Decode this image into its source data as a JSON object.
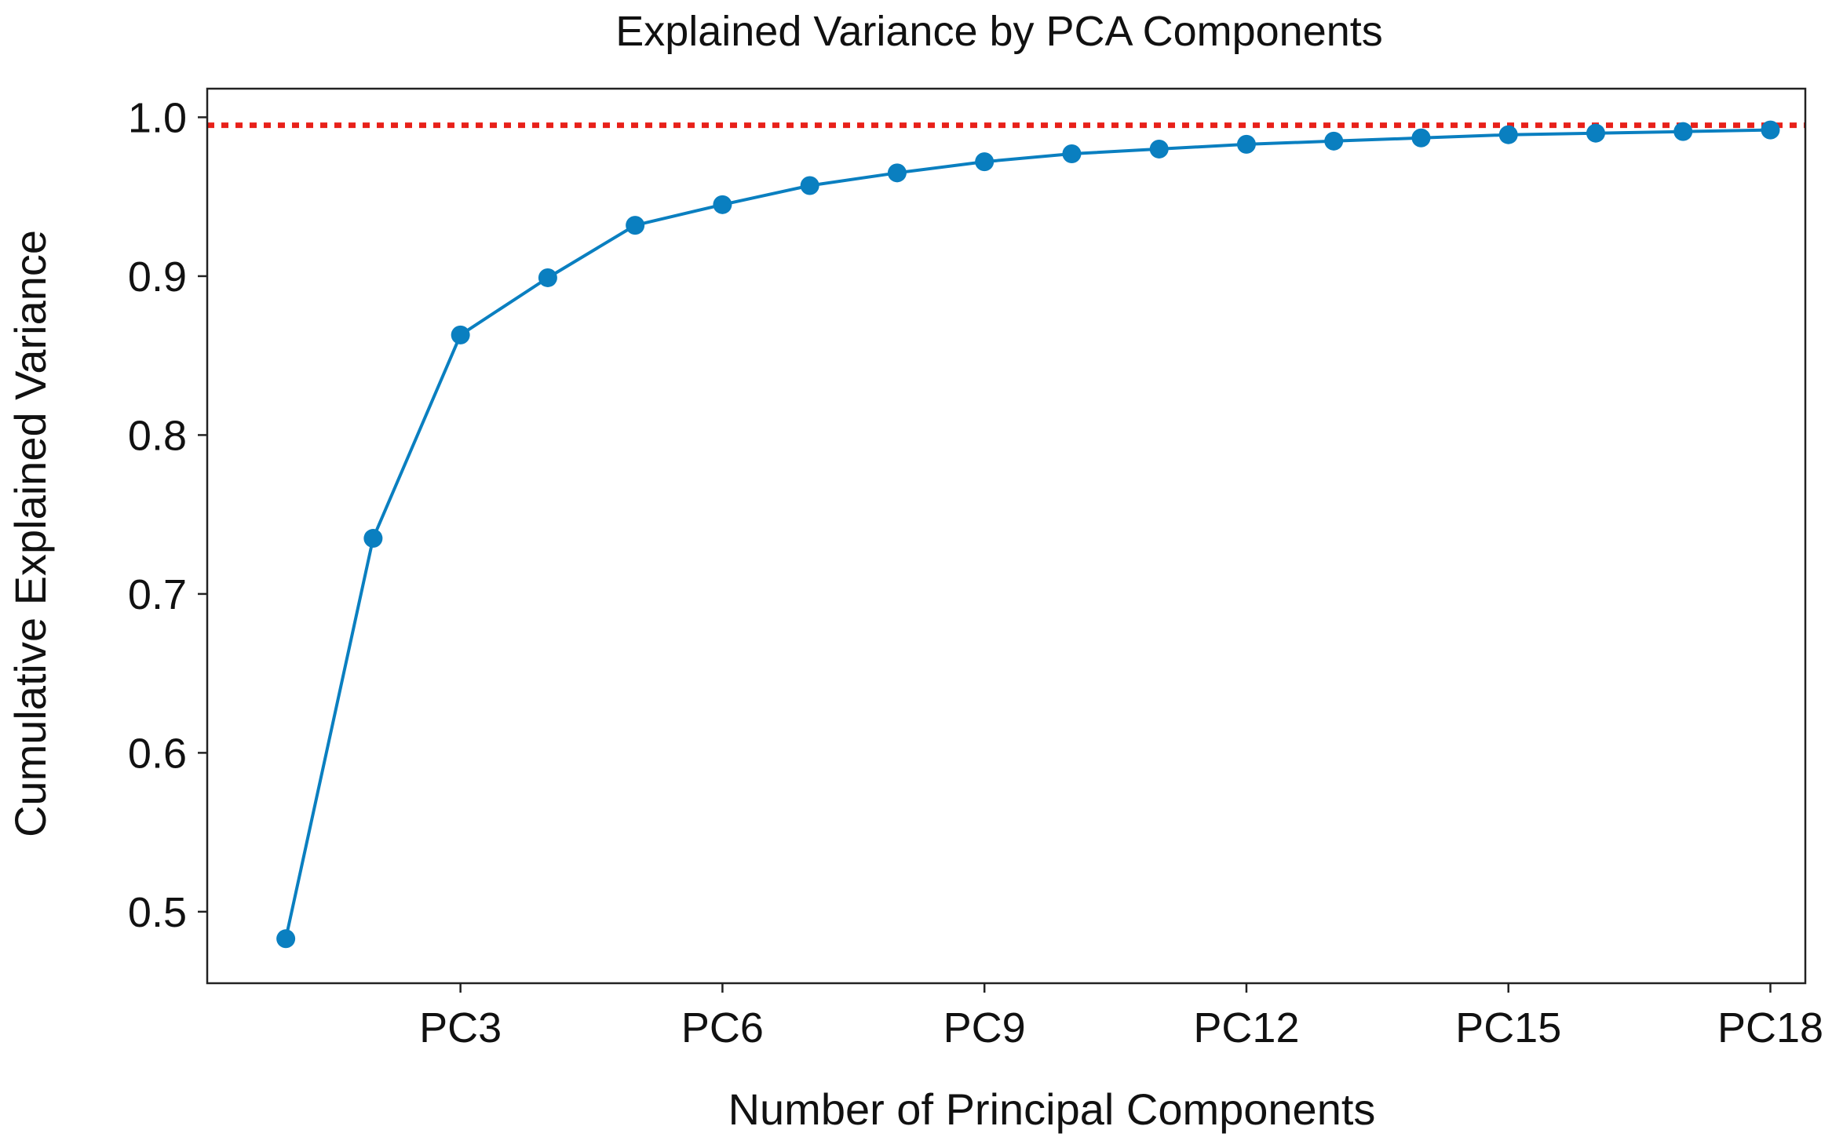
{
  "chart_data": {
    "type": "line",
    "title": "Explained Variance by PCA Components",
    "xlabel": "Number of Principal Components",
    "ylabel": "Cumulative Explained Variance",
    "x": [
      1,
      2,
      3,
      4,
      5,
      6,
      7,
      8,
      9,
      10,
      11,
      12,
      13,
      14,
      15,
      16,
      17,
      18
    ],
    "series": [
      {
        "name": "Cumulative Explained Variance",
        "color": "#0a7fc0",
        "values": [
          0.483,
          0.735,
          0.863,
          0.899,
          0.932,
          0.945,
          0.957,
          0.965,
          0.972,
          0.977,
          0.98,
          0.983,
          0.985,
          0.987,
          0.989,
          0.99,
          0.991,
          0.992
        ]
      }
    ],
    "threshold": {
      "value": 0.995,
      "color": "#e8211a",
      "style": "dotted"
    },
    "xlim": [
      0.1,
      18.4
    ],
    "ylim": [
      0.455,
      1.018
    ],
    "x_ticks": [
      3,
      6,
      9,
      12,
      15,
      18
    ],
    "x_tick_labels": [
      "PC3",
      "PC6",
      "PC9",
      "PC12",
      "PC15",
      "PC18"
    ],
    "y_ticks": [
      0.5,
      0.6,
      0.7,
      0.8,
      0.9,
      1.0
    ],
    "y_tick_labels": [
      "0.5",
      "0.6",
      "0.7",
      "0.8",
      "0.9",
      "1.0"
    ],
    "grid": false,
    "legend": "none"
  }
}
